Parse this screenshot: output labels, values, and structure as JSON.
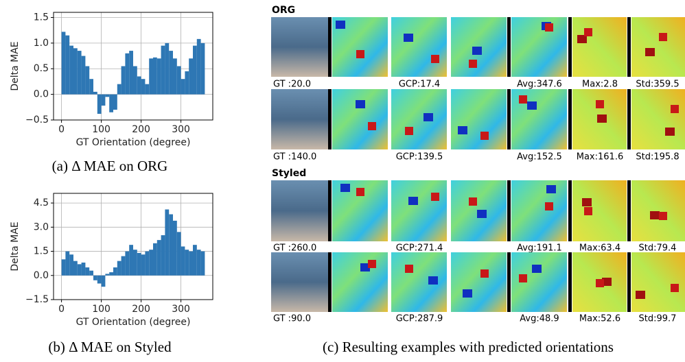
{
  "chart_data": [
    {
      "type": "histogram",
      "caption": "(a)  Δ MAE on ORG",
      "ylabel": "Delta MAE",
      "xlabel": "GT Orientation (degree)",
      "color": "#2e77b4",
      "grid": true,
      "bins": [
        0,
        10,
        20,
        30,
        40,
        50,
        60,
        70,
        80,
        90,
        100,
        110,
        120,
        130,
        140,
        150,
        160,
        170,
        180,
        190,
        200,
        210,
        220,
        230,
        240,
        250,
        260,
        270,
        280,
        290,
        300,
        310,
        320,
        330,
        340,
        350,
        360
      ],
      "values": [
        1.22,
        1.15,
        0.95,
        0.9,
        0.85,
        0.75,
        0.55,
        0.3,
        0.05,
        -0.38,
        -0.22,
        -0.05,
        -0.35,
        -0.3,
        0.2,
        0.55,
        0.8,
        0.85,
        0.55,
        0.35,
        0.3,
        0.2,
        0.7,
        0.72,
        0.7,
        0.95,
        1.0,
        0.85,
        0.7,
        0.55,
        0.3,
        0.45,
        0.7,
        0.95,
        1.08,
        1.0
      ],
      "xlim": [
        -20,
        380
      ],
      "xticks": [
        0,
        100,
        200,
        300
      ],
      "ylim": [
        -0.5,
        1.6
      ],
      "yticks": [
        {
          "value": -0.5,
          "label": "−0.5"
        },
        {
          "value": 0,
          "label": "0.0"
        },
        {
          "value": 0.5,
          "label": "0.5"
        },
        {
          "value": 1,
          "label": "1.0"
        },
        1.5
      ]
    },
    {
      "type": "histogram",
      "caption": "(b)  Δ MAE on Styled",
      "ylabel": "Delta MAE",
      "xlabel": "GT Orientation (degree)",
      "color": "#2e77b4",
      "grid": true,
      "bins": [
        0,
        10,
        20,
        30,
        40,
        50,
        60,
        70,
        80,
        90,
        100,
        110,
        120,
        130,
        140,
        150,
        160,
        170,
        180,
        190,
        200,
        210,
        220,
        230,
        240,
        250,
        260,
        270,
        280,
        290,
        300,
        310,
        320,
        330,
        340,
        350,
        360
      ],
      "values": [
        1.0,
        1.5,
        1.3,
        0.9,
        0.7,
        0.8,
        0.5,
        0.3,
        -0.3,
        -0.5,
        -0.7,
        0.1,
        0.2,
        0.5,
        0.9,
        1.2,
        1.5,
        1.9,
        1.6,
        1.4,
        1.3,
        1.5,
        1.6,
        2.0,
        2.2,
        2.5,
        4.1,
        3.8,
        3.4,
        2.7,
        1.8,
        1.6,
        1.5,
        1.9,
        1.6,
        1.5
      ],
      "xlim": [
        -20,
        380
      ],
      "xticks": [
        0,
        100,
        200,
        300
      ],
      "ylim": [
        -1.5,
        5.1
      ],
      "yticks": [
        {
          "value": -1.5,
          "label": "−1.5"
        },
        {
          "value": 0,
          "label": "0.0"
        },
        1.5,
        {
          "value": 3,
          "label": "3.0"
        },
        4.5
      ]
    }
  ],
  "panel_c": {
    "caption": "(c) Resulting examples with predicted orientations",
    "sections": [
      {
        "title": "ORG",
        "rows": [
          {
            "gt": "GT  :20.0",
            "gcp": "GCP:17.4",
            "avg": "Avg:347.6",
            "max": "Max:2.8",
            "std": "Std:359.5"
          },
          {
            "gt": "GT  :140.0",
            "gcp": "GCP:139.5",
            "avg": "Avg:152.5",
            "max": "Max:161.6",
            "std": "Std:195.8"
          }
        ]
      },
      {
        "title": "Styled",
        "rows": [
          {
            "gt": "GT  :260.0",
            "gcp": "GCP:271.4",
            "avg": "Avg:191.1",
            "max": "Max:63.4",
            "std": "Std:79.4"
          },
          {
            "gt": "GT  :90.0",
            "gcp": "GCP:287.9",
            "avg": "Avg:48.9",
            "max": "Max:52.6",
            "std": "Std:99.7"
          }
        ]
      }
    ]
  }
}
